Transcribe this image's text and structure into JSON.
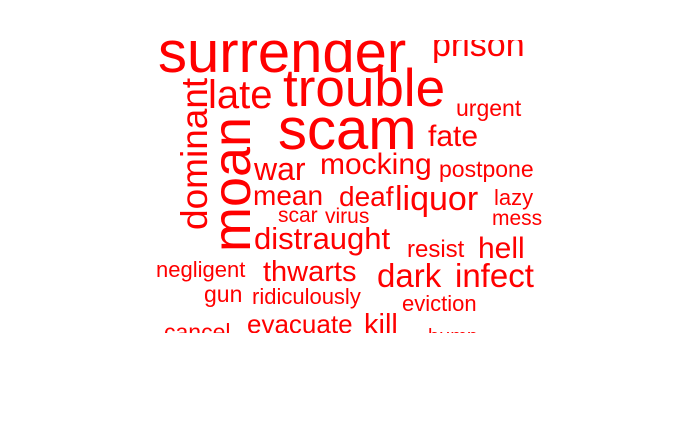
{
  "word_cloud": {
    "color": "#ff0000",
    "words": [
      {
        "text": "surrender",
        "rotated": false
      },
      {
        "text": "prison",
        "rotated": false
      },
      {
        "text": "dominant",
        "rotated": true
      },
      {
        "text": "late",
        "rotated": false
      },
      {
        "text": "trouble",
        "rotated": false
      },
      {
        "text": "urgent",
        "rotated": false
      },
      {
        "text": "moan",
        "rotated": true
      },
      {
        "text": "scam",
        "rotated": false
      },
      {
        "text": "fate",
        "rotated": false
      },
      {
        "text": "war",
        "rotated": false
      },
      {
        "text": "mocking",
        "rotated": false
      },
      {
        "text": "postpone",
        "rotated": false
      },
      {
        "text": "mean",
        "rotated": false
      },
      {
        "text": "deaf",
        "rotated": false
      },
      {
        "text": "liquor",
        "rotated": false
      },
      {
        "text": "lazy",
        "rotated": false
      },
      {
        "text": "scar",
        "rotated": false
      },
      {
        "text": "virus",
        "rotated": false
      },
      {
        "text": "mess",
        "rotated": false
      },
      {
        "text": "distraught",
        "rotated": false
      },
      {
        "text": "resist",
        "rotated": false
      },
      {
        "text": "hell",
        "rotated": false
      },
      {
        "text": "negligent",
        "rotated": false
      },
      {
        "text": "thwarts",
        "rotated": false
      },
      {
        "text": "dark",
        "rotated": false
      },
      {
        "text": "infect",
        "rotated": false
      },
      {
        "text": "gun",
        "rotated": false
      },
      {
        "text": "ridiculously",
        "rotated": false
      },
      {
        "text": "eviction",
        "rotated": false
      },
      {
        "text": "cancel",
        "rotated": false
      },
      {
        "text": "evacuate",
        "rotated": false
      },
      {
        "text": "kill",
        "rotated": false
      },
      {
        "text": "bump",
        "rotated": false
      }
    ]
  }
}
